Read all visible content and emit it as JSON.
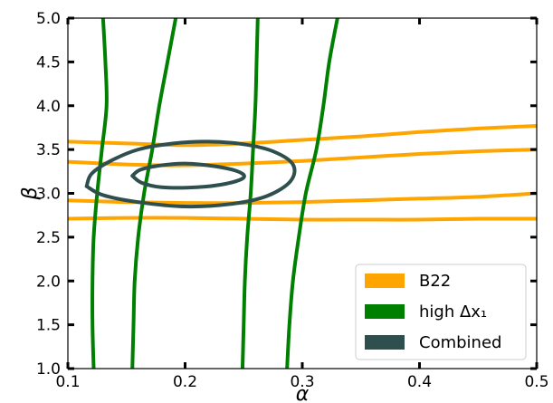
{
  "chart_data": {
    "type": "line",
    "title": "",
    "xlabel": "α",
    "ylabel": "β",
    "xlim": [
      0.1,
      0.5
    ],
    "ylim": [
      1.0,
      5.0
    ],
    "xticks": [
      {
        "value": 0.1,
        "label": "0.1"
      },
      {
        "value": 0.2,
        "label": "0.2"
      },
      {
        "value": 0.3,
        "label": "0.3"
      },
      {
        "value": 0.4,
        "label": "0.4"
      },
      {
        "value": 0.5,
        "label": "0.5"
      }
    ],
    "yticks": [
      {
        "value": 1.0,
        "label": "1.0"
      },
      {
        "value": 1.5,
        "label": "1.5"
      },
      {
        "value": 2.0,
        "label": "2.0"
      },
      {
        "value": 2.5,
        "label": "2.5"
      },
      {
        "value": 3.0,
        "label": "3.0"
      },
      {
        "value": 3.5,
        "label": "3.5"
      },
      {
        "value": 4.0,
        "label": "4.0"
      },
      {
        "value": 4.5,
        "label": "4.5"
      },
      {
        "value": 5.0,
        "label": "5.0"
      }
    ],
    "grid": false,
    "legend_position": "lower-right",
    "legend": [
      {
        "label": "B22",
        "color": "#FFA500"
      },
      {
        "label": "high Δx₁",
        "color": "#008000"
      },
      {
        "label": "Combined",
        "color": "#2F4F4F"
      }
    ],
    "series": [
      {
        "name": "B22",
        "color": "#FFA500",
        "curves": [
          [
            [
              0.1,
              3.59
            ],
            [
              0.15,
              3.57
            ],
            [
              0.2,
              3.55
            ],
            [
              0.25,
              3.57
            ],
            [
              0.3,
              3.61
            ],
            [
              0.35,
              3.65
            ],
            [
              0.4,
              3.7
            ],
            [
              0.45,
              3.74
            ],
            [
              0.5,
              3.77
            ]
          ],
          [
            [
              0.1,
              3.36
            ],
            [
              0.15,
              3.33
            ],
            [
              0.2,
              3.32
            ],
            [
              0.25,
              3.34
            ],
            [
              0.3,
              3.37
            ],
            [
              0.35,
              3.41
            ],
            [
              0.4,
              3.45
            ],
            [
              0.45,
              3.48
            ],
            [
              0.5,
              3.5
            ]
          ],
          [
            [
              0.1,
              2.92
            ],
            [
              0.15,
              2.9
            ],
            [
              0.2,
              2.89
            ],
            [
              0.25,
              2.89
            ],
            [
              0.3,
              2.9
            ],
            [
              0.35,
              2.92
            ],
            [
              0.4,
              2.94
            ],
            [
              0.45,
              2.96
            ],
            [
              0.5,
              3.0
            ]
          ],
          [
            [
              0.1,
              2.71
            ],
            [
              0.15,
              2.72
            ],
            [
              0.2,
              2.72
            ],
            [
              0.25,
              2.71
            ],
            [
              0.3,
              2.7
            ],
            [
              0.35,
              2.7
            ],
            [
              0.4,
              2.7
            ],
            [
              0.45,
              2.71
            ],
            [
              0.5,
              2.71
            ]
          ]
        ]
      },
      {
        "name": "high Δx₁",
        "color": "#008000",
        "curves": [
          [
            [
              0.13,
              5.0
            ],
            [
              0.132,
              4.5
            ],
            [
              0.133,
              4.0
            ],
            [
              0.129,
              3.5
            ],
            [
              0.125,
              3.0
            ],
            [
              0.122,
              2.5
            ],
            [
              0.121,
              2.0
            ],
            [
              0.121,
              1.5
            ],
            [
              0.122,
              1.0
            ]
          ],
          [
            [
              0.192,
              5.0
            ],
            [
              0.185,
              4.5
            ],
            [
              0.178,
              4.0
            ],
            [
              0.172,
              3.5
            ],
            [
              0.165,
              3.0
            ],
            [
              0.16,
              2.5
            ],
            [
              0.157,
              2.0
            ],
            [
              0.156,
              1.5
            ],
            [
              0.155,
              1.0
            ]
          ],
          [
            [
              0.262,
              5.0
            ],
            [
              0.261,
              4.5
            ],
            [
              0.26,
              4.0
            ],
            [
              0.258,
              3.5
            ],
            [
              0.256,
              3.0
            ],
            [
              0.253,
              2.5
            ],
            [
              0.251,
              2.0
            ],
            [
              0.25,
              1.5
            ],
            [
              0.249,
              1.0
            ]
          ],
          [
            [
              0.33,
              5.0
            ],
            [
              0.323,
              4.5
            ],
            [
              0.318,
              4.0
            ],
            [
              0.312,
              3.5
            ],
            [
              0.303,
              3.0
            ],
            [
              0.297,
              2.5
            ],
            [
              0.292,
              2.0
            ],
            [
              0.289,
              1.5
            ],
            [
              0.287,
              1.0
            ]
          ]
        ]
      },
      {
        "name": "Combined",
        "color": "#2F4F4F",
        "curves": [
          [
            [
              0.116,
              3.08
            ],
            [
              0.12,
              3.22
            ],
            [
              0.135,
              3.36
            ],
            [
              0.16,
              3.5
            ],
            [
              0.19,
              3.57
            ],
            [
              0.22,
              3.59
            ],
            [
              0.25,
              3.56
            ],
            [
              0.275,
              3.48
            ],
            [
              0.292,
              3.33
            ],
            [
              0.29,
              3.14
            ],
            [
              0.27,
              2.97
            ],
            [
              0.24,
              2.88
            ],
            [
              0.2,
              2.85
            ],
            [
              0.16,
              2.9
            ],
            [
              0.13,
              2.98
            ],
            [
              0.116,
              3.08
            ]
          ],
          [
            [
              0.155,
              3.2
            ],
            [
              0.162,
              3.27
            ],
            [
              0.18,
              3.32
            ],
            [
              0.2,
              3.34
            ],
            [
              0.225,
              3.31
            ],
            [
              0.245,
              3.25
            ],
            [
              0.25,
              3.18
            ],
            [
              0.235,
              3.11
            ],
            [
              0.21,
              3.07
            ],
            [
              0.18,
              3.07
            ],
            [
              0.163,
              3.12
            ],
            [
              0.155,
              3.2
            ]
          ]
        ]
      }
    ]
  }
}
